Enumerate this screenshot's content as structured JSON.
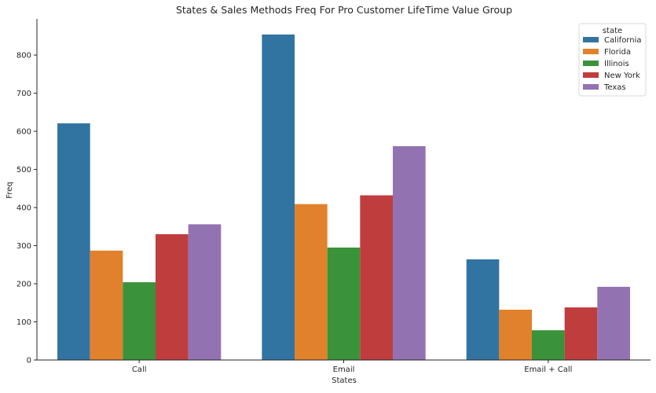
{
  "chart_data": {
    "type": "bar",
    "title": "States & Sales Methods Freq For Pro Customer LifeTime Value Group",
    "xlabel": "States",
    "ylabel": "Freq",
    "categories": [
      "Call",
      "Email",
      "Email + Call"
    ],
    "ylim": [
      0,
      895
    ],
    "yticks": [
      0,
      100,
      200,
      300,
      400,
      500,
      600,
      700,
      800
    ],
    "grid": false,
    "legend": {
      "title": "state",
      "placement": "top-right"
    },
    "series": [
      {
        "name": "California",
        "color": "#3274a1",
        "values": [
          621,
          854,
          264
        ]
      },
      {
        "name": "Florida",
        "color": "#e1812c",
        "values": [
          287,
          409,
          132
        ]
      },
      {
        "name": "Illinois",
        "color": "#3a923a",
        "values": [
          204,
          295,
          78
        ]
      },
      {
        "name": "New York",
        "color": "#c03d3e",
        "values": [
          330,
          432,
          138
        ]
      },
      {
        "name": "Texas",
        "color": "#9372b2",
        "values": [
          356,
          561,
          192
        ]
      }
    ]
  }
}
